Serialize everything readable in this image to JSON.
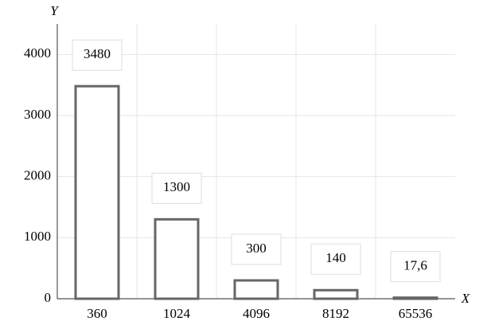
{
  "chart_data": {
    "type": "bar",
    "categories": [
      "360",
      "1024",
      "4096",
      "8192",
      "65536"
    ],
    "values": [
      3480,
      1300,
      300,
      140,
      17.6
    ],
    "value_labels": [
      "3480",
      "1300",
      "300",
      "140",
      "17,6"
    ],
    "color": "#666666",
    "x_label": "X",
    "y_label": "Y",
    "ylim": [
      0,
      4500
    ],
    "yticks": [
      0,
      1000,
      2000,
      3000,
      4000
    ],
    "grid": true
  }
}
